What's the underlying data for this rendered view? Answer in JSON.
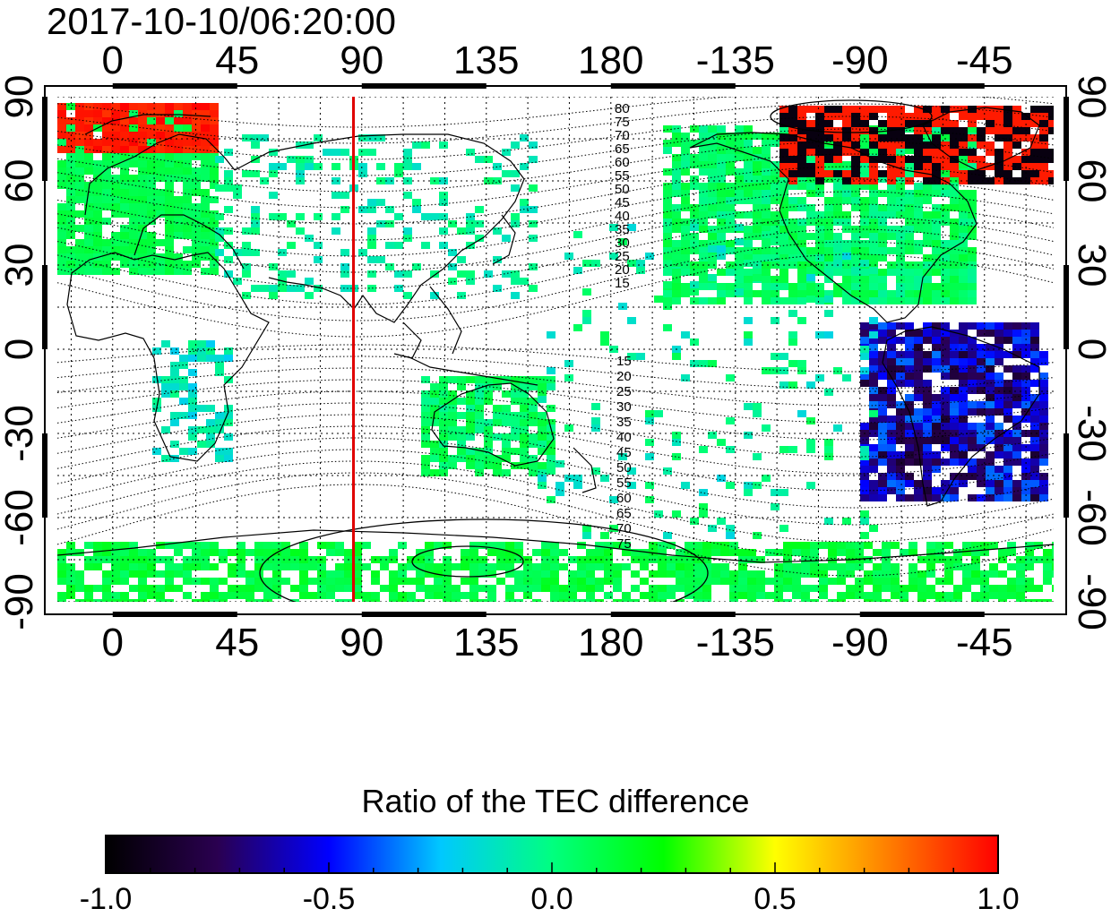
{
  "timestamp": "2017-10-10/06:20:00",
  "map": {
    "lon_ticks": [
      "0",
      "45",
      "90",
      "135",
      "180",
      "-135",
      "-90",
      "-45"
    ],
    "lat_ticks": [
      "90",
      "60",
      "30",
      "0",
      "-30",
      "-60",
      "-90"
    ],
    "lon_range": [
      -20,
      340
    ],
    "lat_range": [
      -90,
      90
    ],
    "grid": true,
    "marked_meridian_lon": 87,
    "marked_meridian_color": "#e00000",
    "contour_labels_north": [
      "80",
      "75",
      "70",
      "65",
      "60",
      "55",
      "50",
      "45",
      "40",
      "35",
      "30",
      "25",
      "20",
      "15"
    ],
    "contour_labels_south": [
      "15",
      "20",
      "25",
      "30",
      "35",
      "40",
      "45",
      "50",
      "55",
      "60",
      "65",
      "70",
      "75"
    ]
  },
  "colorbar": {
    "title": "Ratio of the TEC difference",
    "min": -1.0,
    "max": 1.0,
    "tick_labels": [
      "-1.0",
      "-0.5",
      "0.0",
      "0.5",
      "1.0"
    ],
    "colors": [
      "#000000",
      "#2a0050",
      "#0000ff",
      "#00c8ff",
      "#00ff80",
      "#00ff00",
      "#ffff00",
      "#ff8000",
      "#ff0000"
    ]
  }
}
